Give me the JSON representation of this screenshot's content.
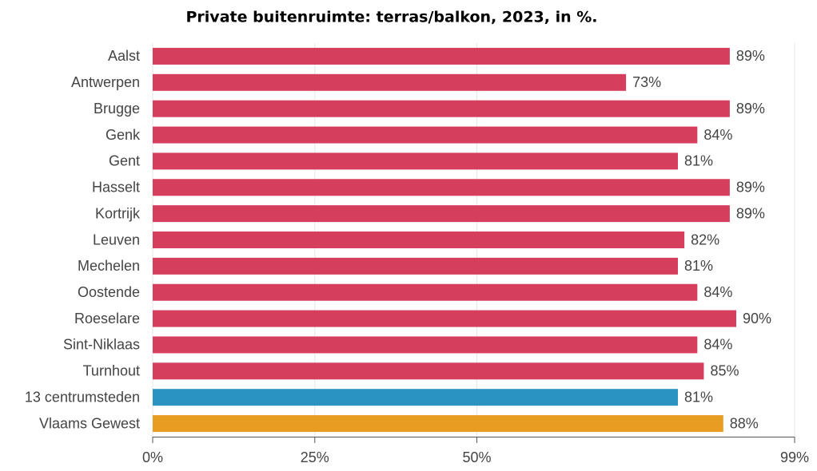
{
  "chart_data": {
    "type": "bar",
    "orientation": "horizontal",
    "title": "Private buitenruimte: terras/balkon, 2023, in %.",
    "categories": [
      "Aalst",
      "Antwerpen",
      "Brugge",
      "Genk",
      "Gent",
      "Hasselt",
      "Kortrijk",
      "Leuven",
      "Mechelen",
      "Oostende",
      "Roeselare",
      "Sint-Niklaas",
      "Turnhout",
      "13 centrumsteden",
      "Vlaams Gewest"
    ],
    "values": [
      89,
      73,
      89,
      84,
      81,
      89,
      89,
      82,
      81,
      84,
      90,
      84,
      85,
      81,
      88
    ],
    "value_labels": [
      "89%",
      "73%",
      "89%",
      "84%",
      "81%",
      "89%",
      "89%",
      "82%",
      "81%",
      "84%",
      "90%",
      "84%",
      "85%",
      "81%",
      "88%"
    ],
    "colors": [
      "#d63e5e",
      "#d63e5e",
      "#d63e5e",
      "#d63e5e",
      "#d63e5e",
      "#d63e5e",
      "#d63e5e",
      "#d63e5e",
      "#d63e5e",
      "#d63e5e",
      "#d63e5e",
      "#d63e5e",
      "#d63e5e",
      "#2b93c0",
      "#e89c22"
    ],
    "xlim": [
      0,
      99
    ],
    "xticks": [
      {
        "value": 0,
        "label": "0%"
      },
      {
        "value": 25,
        "label": "25%"
      },
      {
        "value": 50,
        "label": "50%"
      },
      {
        "value": 99,
        "label": "99%"
      }
    ],
    "grid": true
  }
}
